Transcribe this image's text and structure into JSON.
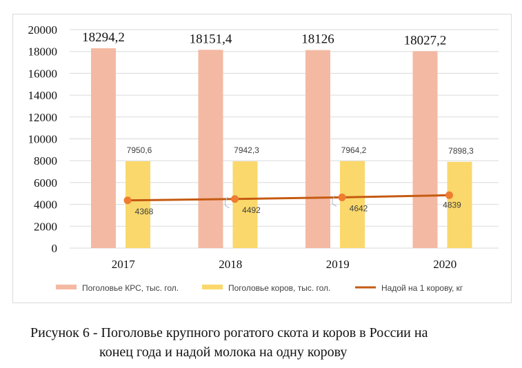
{
  "chart_data": {
    "type": "bar",
    "categories": [
      "2017",
      "2018",
      "2019",
      "2020"
    ],
    "ylim": [
      0,
      20000
    ],
    "yticks": [
      0,
      2000,
      4000,
      6000,
      8000,
      10000,
      12000,
      14000,
      16000,
      18000,
      20000
    ],
    "grid": true,
    "legend_position": "bottom",
    "series": [
      {
        "name": "Поголовье КРС, тыс. гол.",
        "kind": "bar",
        "color": "#f4b9a3",
        "values": [
          18294.2,
          18151.4,
          18126,
          18027.2
        ],
        "labels": [
          "18294,2",
          "18151,4",
          "18126",
          "18027,2"
        ]
      },
      {
        "name": "Поголовье коров, тыс. гол.",
        "kind": "bar",
        "color": "#fad86b",
        "values": [
          7950.6,
          7942.3,
          7964.2,
          7898.3
        ],
        "labels": [
          "7950,6",
          "7942,3",
          "7964,2",
          "7898,3"
        ]
      },
      {
        "name": "Надой на 1 корову, кг",
        "kind": "line",
        "color": "#c55a11",
        "marker_color": "#ed7d31",
        "values": [
          4368,
          4492,
          4642,
          4839
        ],
        "labels": [
          "4368",
          "4492",
          "4642",
          "4839"
        ]
      }
    ]
  },
  "caption": {
    "line1": "Рисунок 6 - Поголовье крупного рогатого скота и коров в России на",
    "line2": "конец года и надой молока на одну корову"
  }
}
